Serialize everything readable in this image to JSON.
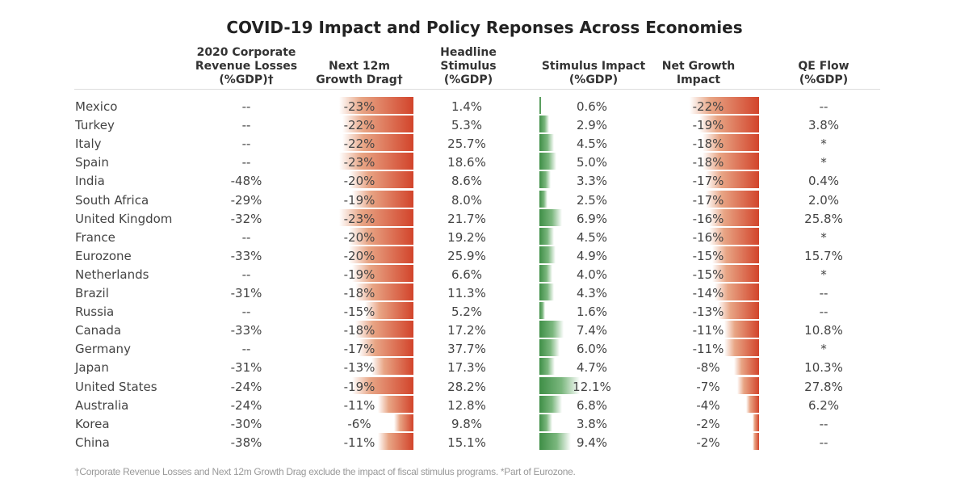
{
  "chart_data": {
    "type": "table",
    "title": "COVID-19 Impact and Policy Reponses Across Economies",
    "columns": [
      "2020 Corporate\nRevenue Losses\n(%GDP)†",
      "Next 12m\nGrowth Drag†",
      "Headline Stimulus\n(%GDP)",
      "Stimulus Impact\n(%GDP)",
      "Net Growth\nImpact",
      "QE Flow\n(%GDP)"
    ],
    "colors": {
      "negative_bar": "#d2442b",
      "positive_bar": "#3e8e46"
    },
    "rows": [
      {
        "country": "Mexico",
        "revenue_losses": "--",
        "growth_drag": "-23%",
        "headline_stimulus": "1.4%",
        "stimulus_impact": "0.6%",
        "net_growth": "-22%",
        "qe_flow": "--"
      },
      {
        "country": "Turkey",
        "revenue_losses": "--",
        "growth_drag": "-22%",
        "headline_stimulus": "5.3%",
        "stimulus_impact": "2.9%",
        "net_growth": "-19%",
        "qe_flow": "3.8%"
      },
      {
        "country": "Italy",
        "revenue_losses": "--",
        "growth_drag": "-22%",
        "headline_stimulus": "25.7%",
        "stimulus_impact": "4.5%",
        "net_growth": "-18%",
        "qe_flow": "*"
      },
      {
        "country": "Spain",
        "revenue_losses": "--",
        "growth_drag": "-23%",
        "headline_stimulus": "18.6%",
        "stimulus_impact": "5.0%",
        "net_growth": "-18%",
        "qe_flow": "*"
      },
      {
        "country": "India",
        "revenue_losses": "-48%",
        "growth_drag": "-20%",
        "headline_stimulus": "8.6%",
        "stimulus_impact": "3.3%",
        "net_growth": "-17%",
        "qe_flow": "0.4%"
      },
      {
        "country": "South Africa",
        "revenue_losses": "-29%",
        "growth_drag": "-19%",
        "headline_stimulus": "8.0%",
        "stimulus_impact": "2.5%",
        "net_growth": "-17%",
        "qe_flow": "2.0%"
      },
      {
        "country": "United Kingdom",
        "revenue_losses": "-32%",
        "growth_drag": "-23%",
        "headline_stimulus": "21.7%",
        "stimulus_impact": "6.9%",
        "net_growth": "-16%",
        "qe_flow": "25.8%"
      },
      {
        "country": "France",
        "revenue_losses": "--",
        "growth_drag": "-20%",
        "headline_stimulus": "19.2%",
        "stimulus_impact": "4.5%",
        "net_growth": "-16%",
        "qe_flow": "*"
      },
      {
        "country": "Eurozone",
        "revenue_losses": "-33%",
        "growth_drag": "-20%",
        "headline_stimulus": "25.9%",
        "stimulus_impact": "4.9%",
        "net_growth": "-15%",
        "qe_flow": "15.7%"
      },
      {
        "country": "Netherlands",
        "revenue_losses": "--",
        "growth_drag": "-19%",
        "headline_stimulus": "6.6%",
        "stimulus_impact": "4.0%",
        "net_growth": "-15%",
        "qe_flow": "*"
      },
      {
        "country": "Brazil",
        "revenue_losses": "-31%",
        "growth_drag": "-18%",
        "headline_stimulus": "11.3%",
        "stimulus_impact": "4.3%",
        "net_growth": "-14%",
        "qe_flow": "--"
      },
      {
        "country": "Russia",
        "revenue_losses": "--",
        "growth_drag": "-15%",
        "headline_stimulus": "5.2%",
        "stimulus_impact": "1.6%",
        "net_growth": "-13%",
        "qe_flow": "--"
      },
      {
        "country": "Canada",
        "revenue_losses": "-33%",
        "growth_drag": "-18%",
        "headline_stimulus": "17.2%",
        "stimulus_impact": "7.4%",
        "net_growth": "-11%",
        "qe_flow": "10.8%"
      },
      {
        "country": "Germany",
        "revenue_losses": "--",
        "growth_drag": "-17%",
        "headline_stimulus": "37.7%",
        "stimulus_impact": "6.0%",
        "net_growth": "-11%",
        "qe_flow": "*"
      },
      {
        "country": "Japan",
        "revenue_losses": "-31%",
        "growth_drag": "-13%",
        "headline_stimulus": "17.3%",
        "stimulus_impact": "4.7%",
        "net_growth": "-8%",
        "qe_flow": "10.3%"
      },
      {
        "country": "United States",
        "revenue_losses": "-24%",
        "growth_drag": "-19%",
        "headline_stimulus": "28.2%",
        "stimulus_impact": "12.1%",
        "net_growth": "-7%",
        "qe_flow": "27.8%"
      },
      {
        "country": "Australia",
        "revenue_losses": "-24%",
        "growth_drag": "-11%",
        "headline_stimulus": "12.8%",
        "stimulus_impact": "6.8%",
        "net_growth": "-4%",
        "qe_flow": "6.2%"
      },
      {
        "country": "Korea",
        "revenue_losses": "-30%",
        "growth_drag": "-6%",
        "headline_stimulus": "9.8%",
        "stimulus_impact": "3.8%",
        "net_growth": "-2%",
        "qe_flow": "--"
      },
      {
        "country": "China",
        "revenue_losses": "-38%",
        "growth_drag": "-11%",
        "headline_stimulus": "15.1%",
        "stimulus_impact": "9.4%",
        "net_growth": "-2%",
        "qe_flow": "--"
      }
    ],
    "footnote": "†Corporate Revenue Losses and Next 12m Growth Drag exclude the impact of fiscal stimulus programs. *Part of Eurozone."
  }
}
